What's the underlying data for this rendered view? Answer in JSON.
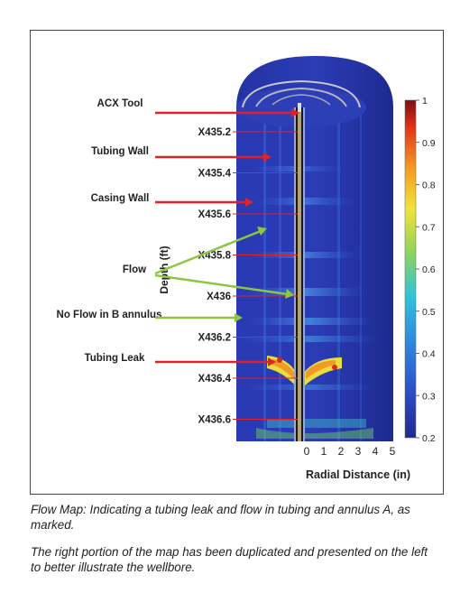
{
  "figure": {
    "labels": {
      "acx_tool": "ACX Tool",
      "tubing_wall": "Tubing Wall",
      "casing_wall": "Casing Wall",
      "flow": "Flow",
      "no_flow": "No Flow in B annulus",
      "tubing_leak": "Tubing Leak"
    },
    "depth_axis": {
      "title": "Depth (ft)",
      "ticks": [
        "X435.2",
        "X435.4",
        "X435.6",
        "X435.8",
        "X436",
        "X436.2",
        "X436.4",
        "X436.6"
      ]
    },
    "radial_axis": {
      "title": "Radial Distance (in)",
      "ticks": [
        "0",
        "1",
        "2",
        "3",
        "4",
        "5"
      ]
    },
    "colorbar": {
      "ticks": [
        "1",
        "0.9",
        "0.8",
        "0.7",
        "0.6",
        "0.5",
        "0.4",
        "0.3",
        "0.2"
      ],
      "min": 0.2,
      "max": 1
    },
    "colors": {
      "background_blue": "#2535a8",
      "arrow_red": "#e0202a",
      "arrow_green": "#8dc63f"
    }
  },
  "caption": {
    "line1": "Flow Map: Indicating a tubing leak and flow in tubing and annulus A, as marked.",
    "line2": "The right portion of the map has been duplicated and presented on the left to better illustrate the wellbore."
  }
}
